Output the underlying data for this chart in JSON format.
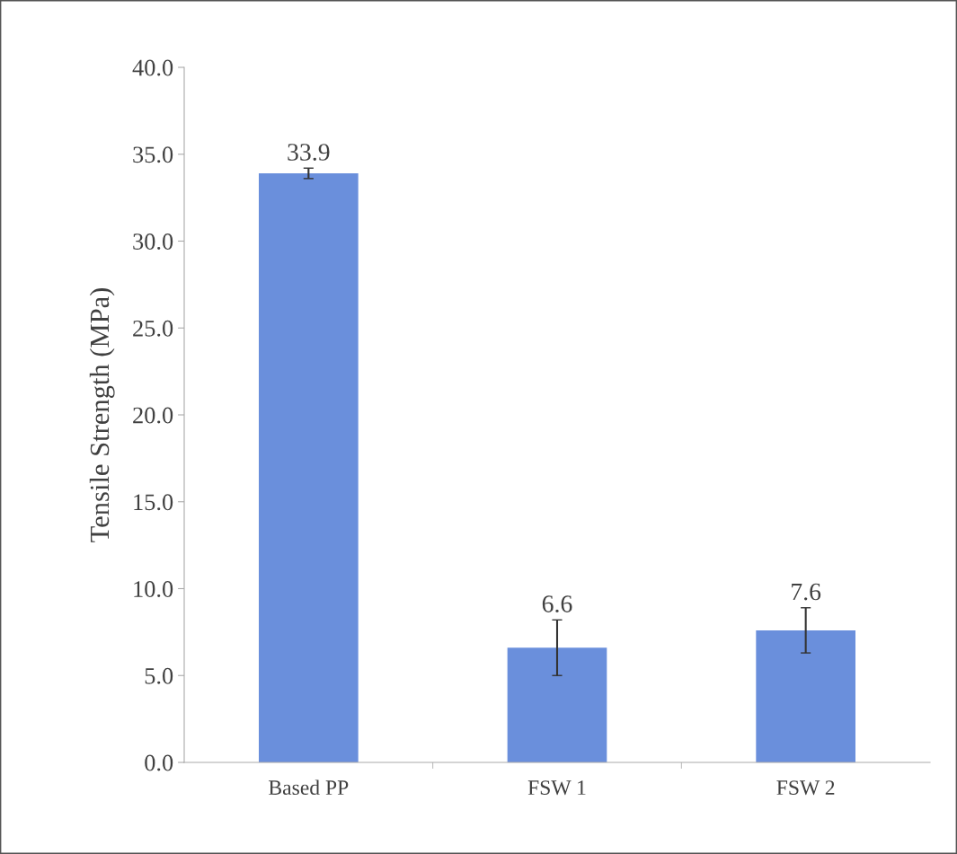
{
  "chart_data": {
    "type": "bar",
    "ylabel": "Tensile Strength (MPa)",
    "categories": [
      "Based PP",
      "FSW 1",
      "FSW 2"
    ],
    "values": [
      33.9,
      6.6,
      7.6
    ],
    "errors": [
      0.3,
      1.6,
      1.3
    ],
    "color": "#6a8fdc",
    "ylim": [
      0,
      40
    ],
    "yticks": [
      {
        "value": 0,
        "label": "0.0"
      },
      {
        "value": 5,
        "label": "5.0"
      },
      {
        "value": 10,
        "label": "10.0"
      },
      {
        "value": 15,
        "label": "15.0"
      },
      {
        "value": 20,
        "label": "20.0"
      },
      {
        "value": 25,
        "label": "25.0"
      },
      {
        "value": 30,
        "label": "30.0"
      },
      {
        "value": 35,
        "label": "35.0"
      },
      {
        "value": 40,
        "label": "40.0"
      }
    ],
    "data_labels": true,
    "grid": false,
    "legend": false
  }
}
